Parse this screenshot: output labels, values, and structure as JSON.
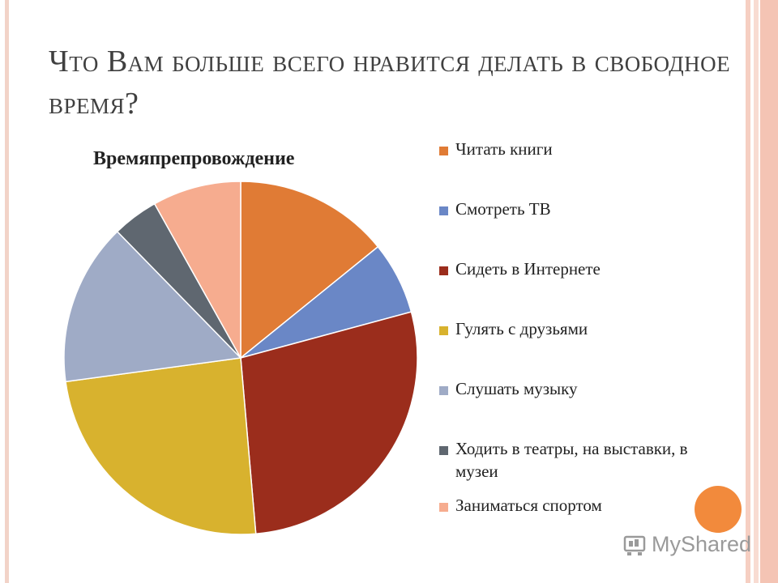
{
  "slide": {
    "title": "Что Вам больше всего нравится делать в свободное время?"
  },
  "chart_data": {
    "type": "pie",
    "title": "Времяпрепровождение",
    "categories": [
      "Читать книги",
      "Смотреть ТВ",
      "Сидеть в Интернете",
      "Гулять с друзьями",
      "Слушать музыку",
      "Ходить в театры, на выставки, в музеи",
      "Заниматься спортом"
    ],
    "values": [
      14.5,
      6.8,
      28.5,
      24.8,
      15.2,
      4.3,
      8.3
    ],
    "colors": [
      "#e07b35",
      "#6a87c6",
      "#9b2d1c",
      "#d8b22e",
      "#9fabc6",
      "#5f6770",
      "#f6ac8f"
    ],
    "legend_position": "right"
  },
  "watermark": {
    "logo_text": "MyShared",
    "icon": "myshared-logo-icon"
  }
}
